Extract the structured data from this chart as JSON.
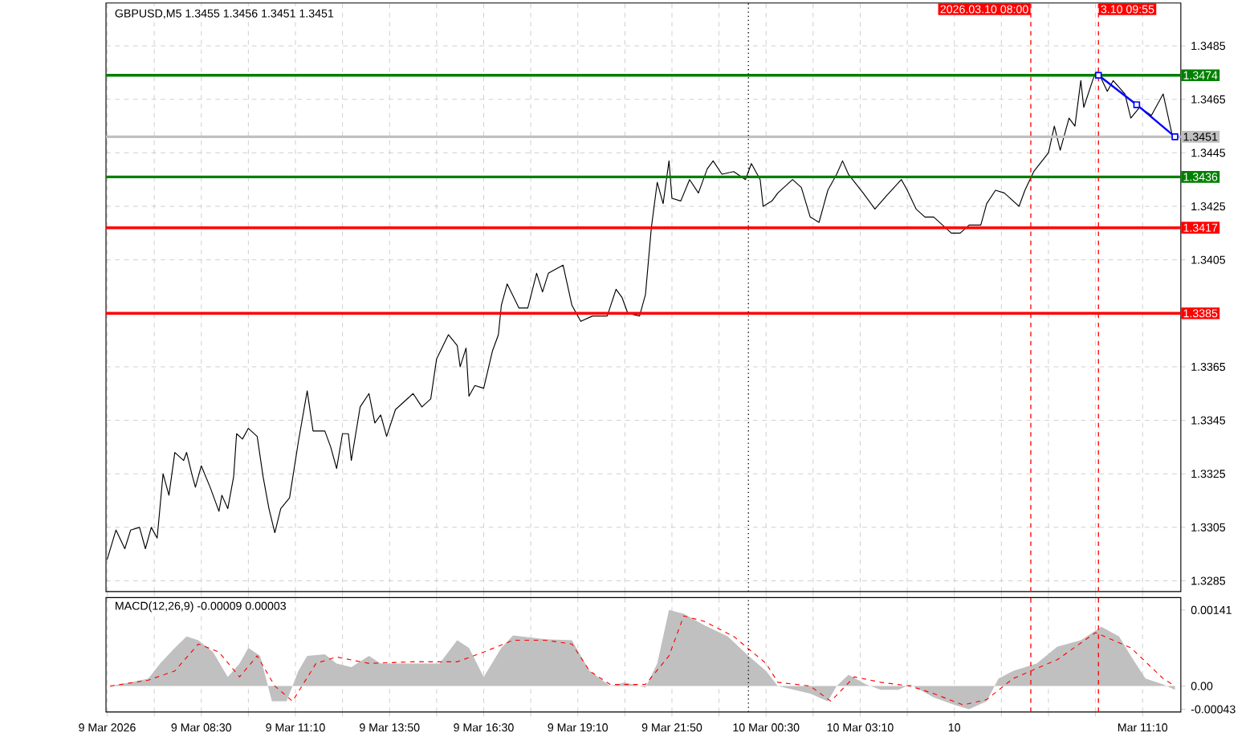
{
  "chart_data": [
    {
      "type": "line",
      "title": "GBPUSD,M5 1.3455 1.3456 1.3451 1.3451",
      "xlim": [
        "2026-03-09T05:48",
        "2026-03-10T12:15"
      ],
      "ylim": [
        1.3281,
        1.3501
      ],
      "xticks": [
        {
          "value": "2026-03-09T05:50",
          "label": null
        },
        {
          "value": "2026-03-09T07:10",
          "label": null
        },
        {
          "value": "2026-03-09T08:30",
          "label": null
        },
        {
          "value": "2026-03-09T09:50",
          "label": null
        },
        {
          "value": "2026-03-09T11:10",
          "label": null
        },
        {
          "value": "2026-03-09T12:30",
          "label": null
        },
        {
          "value": "2026-03-09T13:50",
          "label": null
        },
        {
          "value": "2026-03-09T15:10",
          "label": null
        },
        {
          "value": "2026-03-09T16:30",
          "label": null
        },
        {
          "value": "2026-03-09T17:50",
          "label": null
        },
        {
          "value": "2026-03-09T19:10",
          "label": null
        },
        {
          "value": "2026-03-09T20:30",
          "label": null
        },
        {
          "value": "2026-03-09T21:50",
          "label": null
        },
        {
          "value": "2026-03-09T23:10",
          "label": null
        },
        {
          "value": "2026-03-10T00:30",
          "label": null
        },
        {
          "value": "2026-03-10T01:50",
          "label": null
        },
        {
          "value": "2026-03-10T03:10",
          "label": null
        },
        {
          "value": "2026-03-10T04:30",
          "label": null
        },
        {
          "value": "2026-03-10T05:50",
          "label": null
        },
        {
          "value": "2026-03-10T07:10",
          "label": null
        },
        {
          "value": "2026-03-10T08:30",
          "label": null
        },
        {
          "value": "2026-03-10T09:50",
          "label": null
        },
        {
          "value": "2026-03-10T11:10",
          "label": null
        }
      ],
      "yticks": [
        1.3285,
        1.3305,
        1.3325,
        1.3345,
        1.3365,
        1.3405,
        1.3425,
        1.3445,
        1.3465,
        1.3485
      ],
      "grid": true,
      "tick_labels": "y",
      "series": [
        {
          "color": "#000000",
          "marker": "none",
          "x": [
            "2026-03-09T05:50",
            "2026-03-09T06:05",
            "2026-03-09T06:20",
            "2026-03-09T06:30",
            "2026-03-09T06:45",
            "2026-03-09T06:55",
            "2026-03-09T07:05",
            "2026-03-09T07:15",
            "2026-03-09T07:25",
            "2026-03-09T07:35",
            "2026-03-09T07:45",
            "2026-03-09T08:00",
            "2026-03-09T08:05",
            "2026-03-09T08:15",
            "2026-03-09T08:20",
            "2026-03-09T08:30",
            "2026-03-09T08:45",
            "2026-03-09T09:00",
            "2026-03-09T09:05",
            "2026-03-09T09:15",
            "2026-03-09T09:25",
            "2026-03-09T09:30",
            "2026-03-09T09:40",
            "2026-03-09T09:50",
            "2026-03-09T10:05",
            "2026-03-09T10:15",
            "2026-03-09T10:25",
            "2026-03-09T10:35",
            "2026-03-09T10:45",
            "2026-03-09T11:00",
            "2026-03-09T11:15",
            "2026-03-09T11:30",
            "2026-03-09T11:40",
            "2026-03-09T12:00",
            "2026-03-09T12:10",
            "2026-03-09T12:20",
            "2026-03-09T12:30",
            "2026-03-09T12:40",
            "2026-03-09T12:45",
            "2026-03-09T13:00",
            "2026-03-09T13:15",
            "2026-03-09T13:25",
            "2026-03-09T13:35",
            "2026-03-09T13:45",
            "2026-03-09T14:00",
            "2026-03-09T14:30",
            "2026-03-09T14:45",
            "2026-03-09T15:00",
            "2026-03-09T15:10",
            "2026-03-09T15:30",
            "2026-03-09T15:45",
            "2026-03-09T15:50",
            "2026-03-09T16:00",
            "2026-03-09T16:05",
            "2026-03-09T16:15",
            "2026-03-09T16:30",
            "2026-03-09T16:45",
            "2026-03-09T16:55",
            "2026-03-09T17:00",
            "2026-03-09T17:10",
            "2026-03-09T17:30",
            "2026-03-09T17:45",
            "2026-03-09T18:00",
            "2026-03-09T18:10",
            "2026-03-09T18:20",
            "2026-03-09T18:45",
            "2026-03-09T19:00",
            "2026-03-09T19:15",
            "2026-03-09T19:35",
            "2026-03-09T20:00",
            "2026-03-09T20:15",
            "2026-03-09T20:25",
            "2026-03-09T20:35",
            "2026-03-09T20:55",
            "2026-03-09T21:05",
            "2026-03-09T21:15",
            "2026-03-09T21:25",
            "2026-03-09T21:35",
            "2026-03-09T21:45",
            "2026-03-09T21:50",
            "2026-03-09T22:05",
            "2026-03-09T22:20",
            "2026-03-09T22:35",
            "2026-03-09T22:50",
            "2026-03-09T23:00",
            "2026-03-09T23:15",
            "2026-03-09T23:35",
            "2026-03-09T23:55",
            "2026-03-10T00:05",
            "2026-03-10T00:20",
            "2026-03-10T00:25",
            "2026-03-10T00:40",
            "2026-03-10T00:50",
            "2026-03-10T01:15",
            "2026-03-10T01:30",
            "2026-03-10T01:45",
            "2026-03-10T02:00",
            "2026-03-10T02:15",
            "2026-03-10T02:30",
            "2026-03-10T02:40",
            "2026-03-10T02:50",
            "2026-03-10T03:15",
            "2026-03-10T03:35",
            "2026-03-10T03:55",
            "2026-03-10T04:20",
            "2026-03-10T04:30",
            "2026-03-10T04:45",
            "2026-03-10T05:00",
            "2026-03-10T05:15",
            "2026-03-10T05:30",
            "2026-03-10T05:45",
            "2026-03-10T06:00",
            "2026-03-10T06:15",
            "2026-03-10T06:35",
            "2026-03-10T06:45",
            "2026-03-10T07:00",
            "2026-03-10T07:15",
            "2026-03-10T07:40",
            "2026-03-10T07:50",
            "2026-03-10T08:05",
            "2026-03-10T08:30",
            "2026-03-10T08:40",
            "2026-03-10T08:50",
            "2026-03-10T09:05",
            "2026-03-10T09:15",
            "2026-03-10T09:25",
            "2026-03-10T09:30",
            "2026-03-10T09:45",
            "2026-03-10T09:50",
            "2026-03-10T09:55",
            "2026-03-10T10:10",
            "2026-03-10T10:20",
            "2026-03-10T10:40",
            "2026-03-10T10:50",
            "2026-03-10T11:05",
            "2026-03-10T11:25",
            "2026-03-10T11:45",
            "2026-03-10T11:55",
            "2026-03-10T12:00"
          ],
          "values": [
            1.3293,
            1.3304,
            1.3297,
            1.3304,
            1.3305,
            1.3297,
            1.3305,
            1.3301,
            1.3325,
            1.3317,
            1.3333,
            1.333,
            1.3333,
            1.3324,
            1.332,
            1.3328,
            1.332,
            1.3311,
            1.3317,
            1.3312,
            1.3324,
            1.334,
            1.3338,
            1.3342,
            1.3339,
            1.3324,
            1.3312,
            1.3303,
            1.3312,
            1.3316,
            1.3337,
            1.3356,
            1.3341,
            1.3341,
            1.3335,
            1.3327,
            1.334,
            1.334,
            1.333,
            1.335,
            1.3355,
            1.3344,
            1.3347,
            1.3339,
            1.3349,
            1.3355,
            1.335,
            1.3353,
            1.3368,
            1.3377,
            1.3373,
            1.3365,
            1.3372,
            1.3354,
            1.3358,
            1.3357,
            1.3371,
            1.3377,
            1.3388,
            1.3396,
            1.3387,
            1.3387,
            1.34,
            1.3393,
            1.34,
            1.3403,
            1.3388,
            1.3382,
            1.3384,
            1.3384,
            1.3394,
            1.3391,
            1.3385,
            1.3384,
            1.3392,
            1.3417,
            1.3434,
            1.3426,
            1.3442,
            1.3428,
            1.3427,
            1.3435,
            1.343,
            1.3439,
            1.3442,
            1.3437,
            1.3438,
            1.3435,
            1.3441,
            1.3435,
            1.3425,
            1.3427,
            1.343,
            1.3435,
            1.3432,
            1.3421,
            1.3419,
            1.3431,
            1.3437,
            1.3442,
            1.3437,
            1.343,
            1.3424,
            1.3429,
            1.3435,
            1.3431,
            1.3424,
            1.3421,
            1.3421,
            1.3418,
            1.3415,
            1.3415,
            1.3418,
            1.3418,
            1.3426,
            1.3431,
            1.343,
            1.3425,
            1.3431,
            1.3438,
            1.3445,
            1.3455,
            1.3446,
            1.3458,
            1.3455,
            1.3472,
            1.3462,
            1.3472,
            1.3475,
            1.3475,
            1.3468,
            1.3472,
            1.3467,
            1.3458,
            1.3462,
            1.3459,
            1.3467,
            1.3457,
            1.3452
          ]
        },
        {
          "color": "#0000ff",
          "marker": "square",
          "x": [
            "2026-03-10T09:55",
            "2026-03-10T11:00",
            "2026-03-10T12:05"
          ],
          "values": [
            1.3474,
            1.3463,
            1.3451
          ]
        }
      ],
      "ref_lines": [
        {
          "axis": "y",
          "value": 1.3474,
          "label": "1.3474",
          "color": "#008000"
        },
        {
          "axis": "y",
          "value": 1.3451,
          "label": "1.3451",
          "color": "#c0c0c0"
        },
        {
          "axis": "y",
          "value": 1.3436,
          "label": "1.3436",
          "color": "#008000"
        },
        {
          "axis": "y",
          "value": 1.3417,
          "label": "1.3417",
          "color": "#ff0000"
        },
        {
          "axis": "y",
          "value": 1.3385,
          "label": "1.3385",
          "color": "#ff0000"
        },
        {
          "axis": "x",
          "value": "2026-03-10T00:00",
          "color": "#000000",
          "line_style": "dotted"
        },
        {
          "axis": "x",
          "value": "2026-03-10T08:00",
          "label": "2026.03.10 08:00",
          "color": "#ff0000",
          "line_style": "dashed"
        },
        {
          "axis": "x",
          "value": "2026-03-10T09:55",
          "label": "3.10 09:55",
          "color": "#ff0000",
          "line_style": "dashed"
        }
      ]
    },
    {
      "type": "area",
      "title": "MACD(12,26,9) -0.00009 0.00003",
      "xlim": [
        "2026-03-09T05:48",
        "2026-03-10T12:15"
      ],
      "ylim": [
        -0.00048,
        0.00164
      ],
      "xticks": [
        {
          "value": "2026-03-09T05:50",
          "label": "9 Mar 2026"
        },
        {
          "value": "2026-03-09T07:10",
          "label": null
        },
        {
          "value": "2026-03-09T08:30",
          "label": "9 Mar 08:30"
        },
        {
          "value": "2026-03-09T09:50",
          "label": null
        },
        {
          "value": "2026-03-09T11:10",
          "label": "9 Mar 11:10"
        },
        {
          "value": "2026-03-09T12:30",
          "label": null
        },
        {
          "value": "2026-03-09T13:50",
          "label": "9 Mar 13:50"
        },
        {
          "value": "2026-03-09T15:10",
          "label": null
        },
        {
          "value": "2026-03-09T16:30",
          "label": "9 Mar 16:30"
        },
        {
          "value": "2026-03-09T17:50",
          "label": null
        },
        {
          "value": "2026-03-09T19:10",
          "label": "9 Mar 19:10"
        },
        {
          "value": "2026-03-09T20:30",
          "label": null
        },
        {
          "value": "2026-03-09T21:50",
          "label": "9 Mar 21:50"
        },
        {
          "value": "2026-03-09T23:10",
          "label": null
        },
        {
          "value": "2026-03-10T00:30",
          "label": "10 Mar 00:30"
        },
        {
          "value": "2026-03-10T01:50",
          "label": null
        },
        {
          "value": "2026-03-10T03:10",
          "label": "10 Mar 03:10"
        },
        {
          "value": "2026-03-10T04:30",
          "label": null
        },
        {
          "value": "2026-03-10T05:50",
          "label": "10"
        },
        {
          "value": "2026-03-10T07:10",
          "label": null
        },
        {
          "value": "2026-03-10T08:30",
          "label": null
        },
        {
          "value": "2026-03-10T09:50",
          "label": null
        },
        {
          "value": "2026-03-10T11:10",
          "label": "Mar 11:10"
        }
      ],
      "yticks": [
        -0.00043,
        {
          "value": 0,
          "label": "0.00"
        },
        0.00141
      ],
      "grid": "x",
      "series": [
        {
          "color": "#c0c0c0",
          "x": [
            "2026-03-09T05:55",
            "2026-03-09T06:30",
            "2026-03-09T07:00",
            "2026-03-09T07:20",
            "2026-03-09T07:45",
            "2026-03-09T08:05",
            "2026-03-09T08:25",
            "2026-03-09T08:50",
            "2026-03-09T09:15",
            "2026-03-09T09:35",
            "2026-03-09T09:50",
            "2026-03-09T10:10",
            "2026-03-09T10:30",
            "2026-03-09T10:55",
            "2026-03-09T11:15",
            "2026-03-09T11:30",
            "2026-03-09T12:00",
            "2026-03-09T12:20",
            "2026-03-09T12:45",
            "2026-03-09T13:15",
            "2026-03-09T13:35",
            "2026-03-09T14:30",
            "2026-03-09T15:15",
            "2026-03-09T15:45",
            "2026-03-09T16:05",
            "2026-03-09T16:30",
            "2026-03-09T17:00",
            "2026-03-09T17:20",
            "2026-03-09T18:15",
            "2026-03-09T19:00",
            "2026-03-09T19:30",
            "2026-03-09T20:05",
            "2026-03-09T20:30",
            "2026-03-09T21:05",
            "2026-03-09T21:25",
            "2026-03-09T21:45",
            "2026-03-09T22:10",
            "2026-03-09T22:45",
            "2026-03-09T23:25",
            "2026-03-10T00:00",
            "2026-03-10T00:30",
            "2026-03-10T00:50",
            "2026-03-10T01:45",
            "2026-03-10T02:15",
            "2026-03-10T02:30",
            "2026-03-10T02:50",
            "2026-03-10T03:20",
            "2026-03-10T03:45",
            "2026-03-10T04:15",
            "2026-03-10T04:35",
            "2026-03-10T05:15",
            "2026-03-10T05:50",
            "2026-03-10T06:15",
            "2026-03-10T06:45",
            "2026-03-10T07:05",
            "2026-03-10T07:30",
            "2026-03-10T08:10",
            "2026-03-10T08:45",
            "2026-03-10T09:25",
            "2026-03-10T10:00",
            "2026-03-10T10:30",
            "2026-03-10T10:50",
            "2026-03-10T11:15",
            "2026-03-10T11:45",
            "2026-03-10T12:05"
          ],
          "values": [
            0,
            7e-05,
            0.00014,
            0.00042,
            0.00071,
            0.00092,
            0.00085,
            0.00063,
            0.00017,
            0.00042,
            0.00071,
            0.00056,
            -0.00028,
            -0.00028,
            0.00028,
            0.00056,
            0.00059,
            0.00042,
            0.00035,
            0.00056,
            0.00042,
            0.00042,
            0.00042,
            0.00085,
            0.00071,
            0.00017,
            0.00071,
            0.00094,
            0.00087,
            0.00085,
            0.00028,
            0,
            7e-05,
            -3e-05,
            0.00042,
            0.00141,
            0.00134,
            0.00113,
            0.00092,
            0.00056,
            0.00028,
            0,
            -0.00014,
            -0.00028,
            0,
            0.00021,
            3e-05,
            -7e-05,
            -7e-05,
            3e-05,
            -0.00021,
            -0.00035,
            -0.00043,
            -0.00028,
            0.00014,
            0.00028,
            0.00042,
            0.00073,
            0.00085,
            0.0011,
            0.00092,
            0.00056,
            0.00014,
            3e-05,
            -7e-05
          ]
        },
        {
          "type": "line",
          "color": "#ff0000",
          "line_style": "dashed",
          "x": [
            "2026-03-09T05:55",
            "2026-03-09T07:00",
            "2026-03-09T07:45",
            "2026-03-09T08:25",
            "2026-03-09T09:00",
            "2026-03-09T09:35",
            "2026-03-09T10:05",
            "2026-03-09T10:35",
            "2026-03-09T11:05",
            "2026-03-09T11:45",
            "2026-03-09T12:20",
            "2026-03-09T13:15",
            "2026-03-09T14:30",
            "2026-03-09T15:45",
            "2026-03-09T16:30",
            "2026-03-09T17:20",
            "2026-03-09T18:15",
            "2026-03-09T19:00",
            "2026-03-09T19:30",
            "2026-03-09T20:05",
            "2026-03-09T21:05",
            "2026-03-09T21:45",
            "2026-03-09T22:10",
            "2026-03-09T22:45",
            "2026-03-09T23:35",
            "2026-03-10T00:30",
            "2026-03-10T00:50",
            "2026-03-10T01:45",
            "2026-03-10T02:20",
            "2026-03-10T03:00",
            "2026-03-10T03:45",
            "2026-03-10T04:35",
            "2026-03-10T05:15",
            "2026-03-10T06:05",
            "2026-03-10T06:45",
            "2026-03-10T07:30",
            "2026-03-10T08:45",
            "2026-03-10T09:50",
            "2026-03-10T10:50",
            "2026-03-10T11:45",
            "2026-03-10T12:05"
          ],
          "values": [
            0,
            0.00011,
            0.00028,
            0.00078,
            0.00063,
            0.00017,
            0.00056,
            0,
            -0.00028,
            0.00042,
            0.00054,
            0.00042,
            0.00045,
            0.00045,
            0.00063,
            0.00085,
            0.00085,
            0.00078,
            0.00028,
            3e-05,
            3e-05,
            0.00056,
            0.0013,
            0.0012,
            0.00092,
            0.00042,
            7e-05,
            0,
            -0.00028,
            0.00017,
            7e-05,
            0,
            -0.00014,
            -0.00035,
            -0.00025,
            0.00014,
            0.00049,
            0.00099,
            0.00071,
            0.00014,
            0
          ]
        }
      ],
      "ref_lines": [
        {
          "axis": "x",
          "value": "2026-03-10T00:00",
          "color": "#000000",
          "line_style": "dotted"
        },
        {
          "axis": "x",
          "value": "2026-03-10T08:00",
          "color": "#ff0000",
          "line_style": "dashed"
        },
        {
          "axis": "x",
          "value": "2026-03-10T09:55",
          "color": "#ff0000",
          "line_style": "dashed"
        }
      ]
    }
  ]
}
